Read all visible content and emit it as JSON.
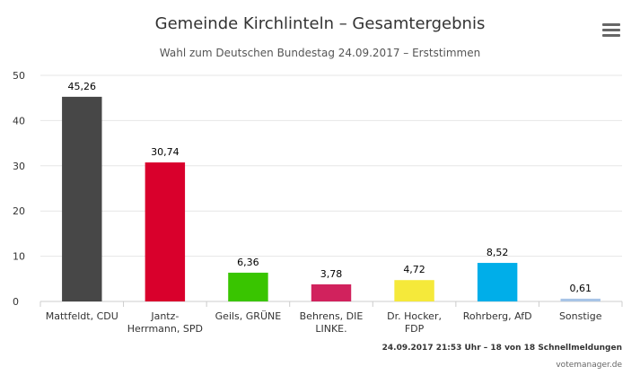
{
  "header": {
    "title": "Gemeinde Kirchlinteln – Gesamtergebnis",
    "subtitle": "Wahl zum Deutschen Bundestag 24.09.2017 – Erststimmen",
    "menu_icon": "hamburger-menu-icon"
  },
  "footer": {
    "status": "24.09.2017 21:53 Uhr – 18 von 18 Schnellmeldungen",
    "credit": "votemanager.de"
  },
  "chart_data": {
    "type": "bar",
    "title": "Gemeinde Kirchlinteln – Gesamtergebnis",
    "subtitle": "Wahl zum Deutschen Bundestag 24.09.2017 – Erststimmen",
    "xlabel": "",
    "ylabel": "",
    "ylim": [
      0,
      50
    ],
    "yticks": [
      0,
      10,
      20,
      30,
      40,
      50
    ],
    "grid": true,
    "categories": [
      [
        "Mattfeldt, CDU"
      ],
      [
        "Jantz-",
        "Herrmann, SPD"
      ],
      [
        "Geils, GRÜNE"
      ],
      [
        "Behrens, DIE",
        "LINKE."
      ],
      [
        "Dr. Hocker,",
        "FDP"
      ],
      [
        "Rohrberg, AfD"
      ],
      [
        "Sonstige"
      ]
    ],
    "values": [
      45.26,
      30.74,
      6.36,
      3.78,
      4.72,
      8.52,
      0.61
    ],
    "value_labels": [
      "45,26",
      "30,74",
      "6,36",
      "3,78",
      "4,72",
      "8,52",
      "0,61"
    ],
    "colors": [
      "#474747",
      "#d9002c",
      "#39c500",
      "#d1225d",
      "#f5e93a",
      "#00aee9",
      "#a8c4e6"
    ]
  }
}
